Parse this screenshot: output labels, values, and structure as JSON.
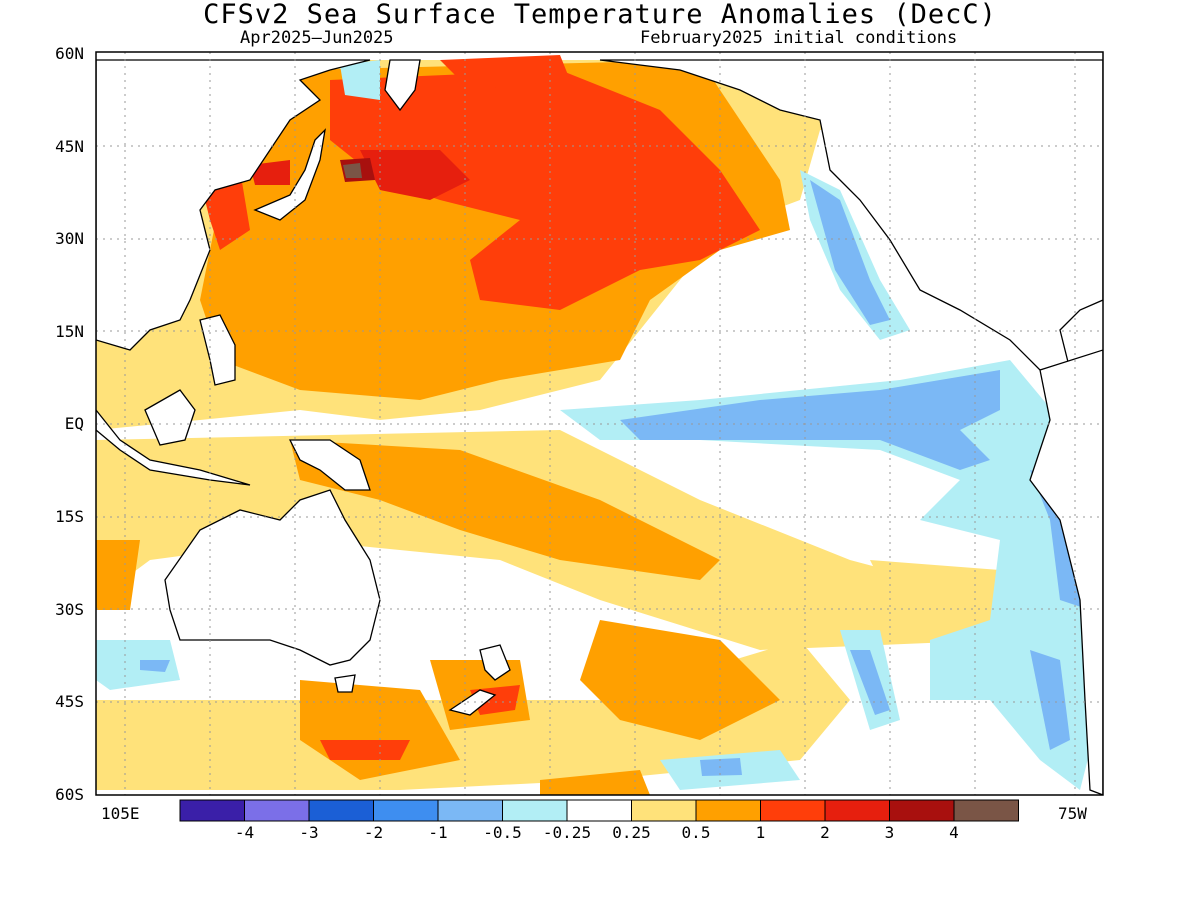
{
  "title": "CFSv2 Sea Surface Temperature Anomalies (DecC)",
  "subtitle_left": "Apr2025–Jun2025",
  "subtitle_right": "February2025 initial conditions",
  "lat_labels": [
    "60N",
    "45N",
    "30N",
    "15N",
    "EQ",
    "15S",
    "30S",
    "45S",
    "60S"
  ],
  "lon_labels": {
    "left": "105E",
    "right": "75W"
  },
  "colorbar": {
    "colors": [
      "#3a1fa8",
      "#7b6fe8",
      "#1b5fd6",
      "#3e8ef0",
      "#7bb8f5",
      "#b2eef5",
      "#ffffff",
      "#ffe27a",
      "#ffa000",
      "#ff3e0a",
      "#e61f0e",
      "#a8100e",
      "#7a5546"
    ],
    "labels": [
      "-4",
      "-3",
      "-2",
      "-1",
      "-0.5",
      "-0.25",
      "0.25",
      "0.5",
      "1",
      "2",
      "3",
      "4"
    ]
  }
}
